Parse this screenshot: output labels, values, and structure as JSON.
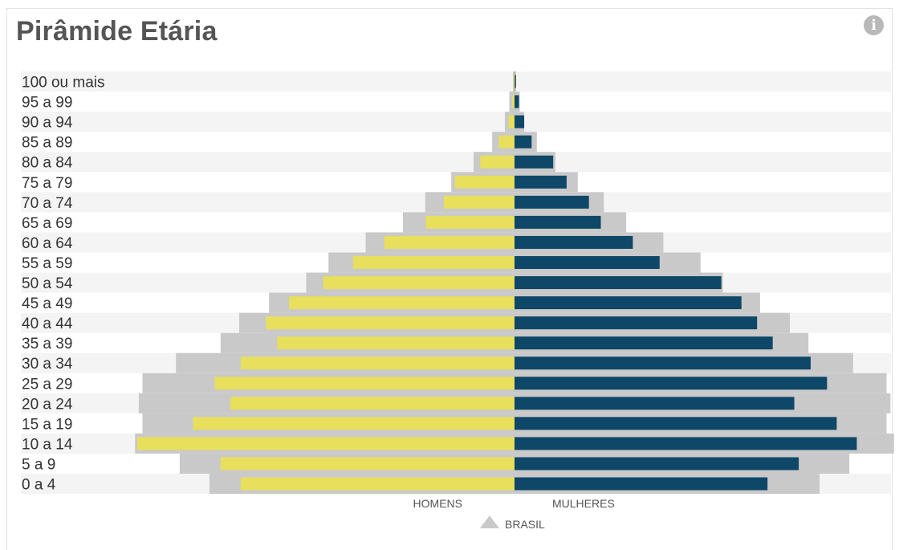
{
  "title": "Pirâmide Etária",
  "icons": {
    "info": "info-icon"
  },
  "colors": {
    "men": "#e8df5c",
    "women": "#0e4767",
    "brasil": "#c9c9c9",
    "row_band": "#f4f4f4"
  },
  "chart_data": {
    "type": "bar",
    "orientation": "horizontal",
    "layout": "population-pyramid",
    "categories": [
      "100 ou mais",
      "95 a 99",
      "90 a 94",
      "85 a 89",
      "80 a 84",
      "75 a 79",
      "70 a 74",
      "65 a 69",
      "60 a 64",
      "55 a 59",
      "50 a 54",
      "45 a 49",
      "40 a 44",
      "35 a 39",
      "30 a 34",
      "25 a 29",
      "20 a 24",
      "15 a 19",
      "10 a 14",
      "5 a 9",
      "0 a 4"
    ],
    "series": [
      {
        "name": "HOMENS",
        "side": "left",
        "values": [
          0.1,
          0.3,
          0.8,
          2.1,
          4.6,
          8.0,
          9.5,
          11.9,
          17.5,
          21.7,
          25.7,
          30.3,
          33.4,
          31.9,
          36.8,
          40.3,
          38.2,
          43.2,
          50.7,
          39.5,
          36.8
        ]
      },
      {
        "name": "MULHERES",
        "side": "right",
        "values": [
          0.2,
          0.6,
          1.3,
          2.3,
          5.2,
          7.0,
          10.0,
          11.6,
          15.9,
          19.5,
          27.8,
          30.5,
          32.6,
          34.7,
          39.8,
          42.0,
          37.6,
          43.3,
          46.0,
          38.2,
          34.0
        ]
      },
      {
        "name": "BRASIL",
        "side": "both",
        "values": [
          0.2,
          0.7,
          1.3,
          3.0,
          5.5,
          8.5,
          12.0,
          15.0,
          20.0,
          25.0,
          28.0,
          33.0,
          37.0,
          39.5,
          45.5,
          50.0,
          50.5,
          50.0,
          51.0,
          45.0,
          41.0
        ]
      }
    ],
    "legend": [
      "HOMENS",
      "MULHERES",
      "BRASIL"
    ],
    "legend_placement": "bottom-center",
    "grid": false
  }
}
